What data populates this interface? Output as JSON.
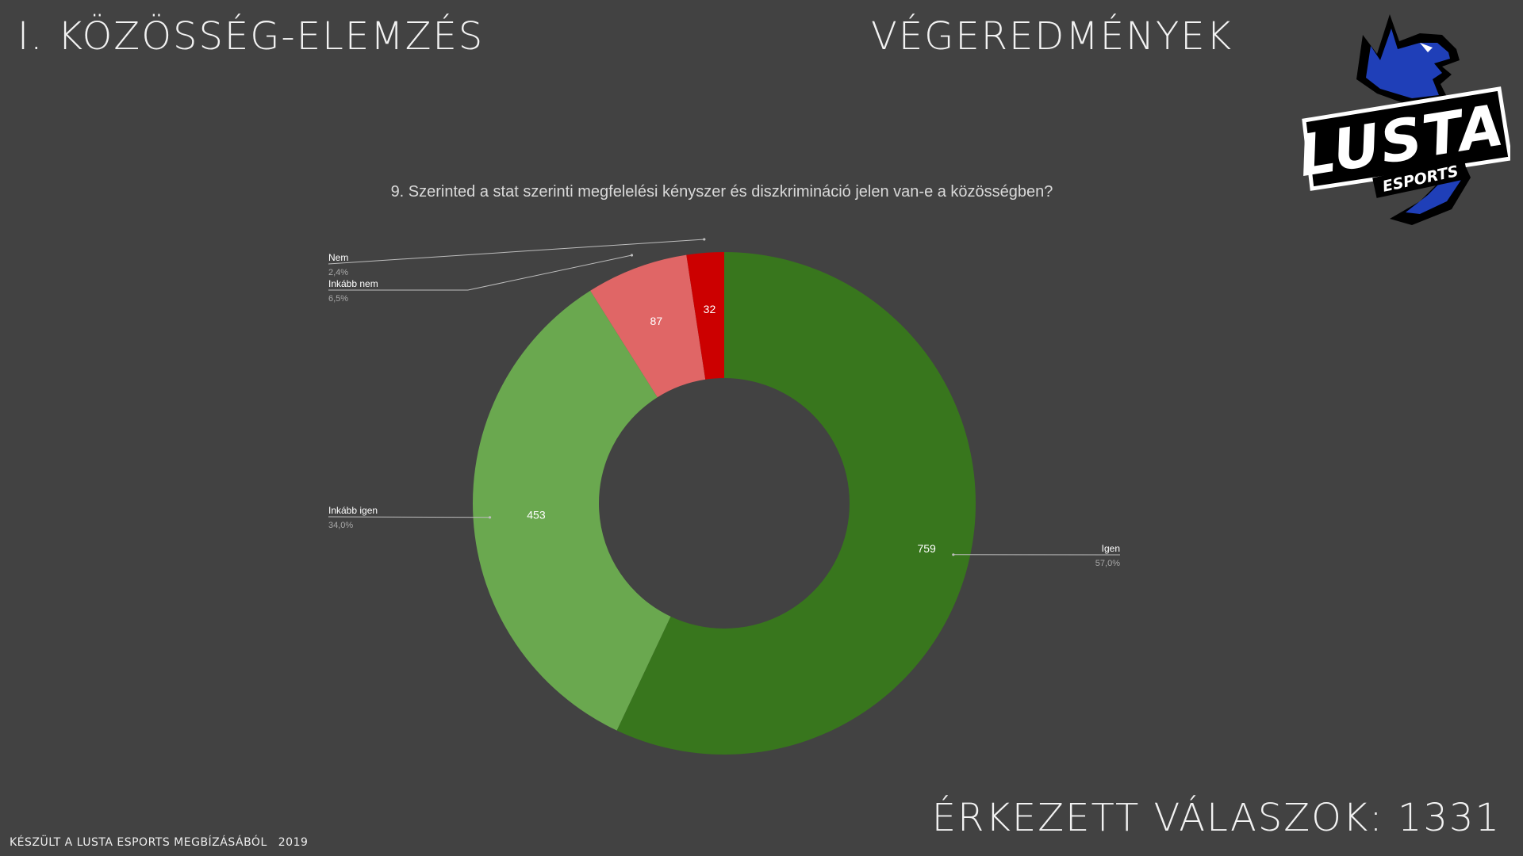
{
  "header": {
    "section_title": "I. KÖZÖSSÉG-ELEMZÉS",
    "results_title": "VÉGEREDMÉNYEK"
  },
  "logo": {
    "text": "LUSTA",
    "subtext": "ESPORTS",
    "icon": "wolf-icon",
    "accent_color": "#1f3fb8"
  },
  "chart_data": {
    "type": "pie",
    "style": "donut",
    "title": "9. Szerinted a stat szerinti megfelelési kényszer és diszkrimináció jelen van-e a közösségben?",
    "slices": [
      {
        "label": "Igen",
        "value": 759,
        "percent": "57,0%",
        "color": "#38761d"
      },
      {
        "label": "Inkább igen",
        "value": 453,
        "percent": "34,0%",
        "color": "#6aa84f"
      },
      {
        "label": "Inkább nem",
        "value": 87,
        "percent": "6,5%",
        "color": "#e06666"
      },
      {
        "label": "Nem",
        "value": 32,
        "percent": "2,4%",
        "color": "#cc0000"
      }
    ]
  },
  "responses": {
    "label": "ÉRKEZETT VÁLASZOK: 1331"
  },
  "footer": {
    "credit": "KÉSZÜLT A LUSTA ESPORTS MEGBÍZÁSÁBÓL",
    "year": "2019"
  }
}
